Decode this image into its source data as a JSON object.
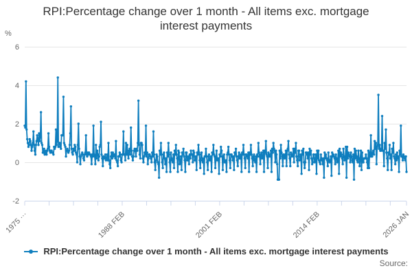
{
  "title": "RPI:Percentage change over 1 month - All items exc. mortgage interest payments",
  "y_axis": {
    "unit_label": "%",
    "tick_labels": [
      "6",
      "4",
      "2",
      "0",
      "-2"
    ]
  },
  "x_axis": {
    "labels": [
      {
        "text": "1975 ···",
        "month": 0
      },
      {
        "text": "1988 FEB",
        "month": 156
      },
      {
        "text": "2001 FEB",
        "month": 312
      },
      {
        "text": "2014 FEB",
        "month": 468
      },
      {
        "text": "2026 JAN",
        "month": 611
      }
    ]
  },
  "legend": {
    "label": "RPI:Percentage change over 1 month - All items exc. mortgage interest payments"
  },
  "source_label": "Source:",
  "colors": {
    "line": "#0f7ebe",
    "grid": "#e6e6e6",
    "axis": "#ccd6eb",
    "axis_text": "#666666",
    "title_text": "#333333"
  },
  "chart_data": {
    "type": "line",
    "title": "RPI:Percentage change over 1 month - All items exc. mortgage interest payments",
    "series_name": "RPI:Percentage change over 1 month - All items exc. mortgage interest payments",
    "ylabel": "%",
    "ylim": [
      -2,
      6
    ],
    "y_ticks": [
      6,
      4,
      2,
      0,
      -2
    ],
    "x_start": "1975 FEB",
    "x_end": "2026 JAN",
    "frequency": "monthly",
    "x_minor_tick_every_months": 39,
    "grid": true,
    "legend_position": "bottom",
    "values": [
      1.9,
      1.8,
      4.2,
      1.7,
      1.2,
      1.0,
      0.8,
      0.9,
      1.2,
      1.1,
      0.9,
      0.6,
      0.8,
      1.0,
      1.6,
      0.9,
      0.6,
      0.4,
      0.9,
      1.1,
      1.4,
      1.2,
      0.9,
      1.5,
      1.1,
      1.3,
      2.6,
      1.0,
      0.9,
      0.5,
      0.5,
      0.7,
      0.4,
      0.5,
      0.6,
      0.4,
      0.6,
      0.7,
      1.5,
      0.8,
      0.6,
      0.5,
      0.6,
      0.6,
      0.5,
      0.5,
      0.4,
      0.8,
      0.7,
      0.8,
      1.7,
      0.9,
      1.1,
      4.4,
      0.8,
      1.0,
      1.0,
      0.8,
      0.7,
      1.4,
      1.4,
      1.4,
      3.4,
      1.0,
      0.9,
      0.8,
      0.3,
      0.6,
      0.7,
      0.6,
      0.5,
      0.6,
      0.9,
      1.5,
      2.9,
      0.7,
      0.5,
      0.4,
      0.7,
      0.6,
      0.9,
      0.8,
      0.5,
      0.4,
      0.0,
      0.9,
      2.0,
      0.7,
      0.3,
      -0.1,
      0.3,
      0.4,
      0.5,
      0.4,
      0.2,
      0.1,
      0.4,
      0.5,
      1.4,
      0.4,
      0.3,
      0.5,
      0.4,
      0.5,
      0.4,
      0.4,
      0.3,
      -0.1,
      0.4,
      0.3,
      1.9,
      0.4,
      0.3,
      -0.1,
      0.9,
      0.2,
      0.6,
      0.4,
      0.1,
      0.3,
      0.8,
      0.9,
      2.1,
      0.4,
      0.2,
      -0.2,
      0.3,
      0.2,
      0.2,
      0.4,
      0.1,
      0.2,
      0.4,
      0.1,
      1.0,
      0.1,
      -0.1,
      -0.3,
      0.3,
      0.5,
      0.2,
      0.5,
      0.3,
      0.4,
      0.4,
      0.2,
      1.1,
      0.1,
      0.0,
      -0.2,
      0.3,
      0.3,
      0.5,
      0.4,
      0.1,
      0.0,
      0.4,
      0.4,
      1.6,
      0.4,
      0.4,
      0.1,
      1.0,
      0.4,
      0.9,
      0.4,
      0.2,
      0.6,
      0.7,
      0.4,
      1.8,
      0.6,
      0.3,
      0.1,
      0.3,
      0.6,
      0.7,
      0.6,
      0.3,
      0.7,
      0.6,
      1.0,
      3.2,
      0.9,
      0.4,
      0.2,
      1.0,
      1.0,
      0.9,
      0.2,
      0.0,
      0.3,
      0.5,
      0.4,
      1.9,
      0.3,
      0.5,
      -0.1,
      0.2,
      0.4,
      0.4,
      0.3,
      0.2,
      0.0,
      0.5,
      0.3,
      1.6,
      0.4,
      0.0,
      -0.4,
      0.1,
      0.4,
      0.3,
      0.0,
      -0.1,
      -0.8,
      0.6,
      0.4,
      1.0,
      0.4,
      0.0,
      -0.3,
      0.4,
      0.5,
      0.2,
      -0.1,
      0.2,
      -0.5,
      0.5,
      0.3,
      1.0,
      0.4,
      0.0,
      -0.5,
      0.5,
      0.2,
      0.1,
      0.0,
      0.4,
      -0.3,
      0.6,
      0.4,
      0.9,
      0.4,
      0.2,
      -0.5,
      0.6,
      0.5,
      -0.1,
      0.0,
      0.3,
      -0.4,
      0.5,
      0.4,
      0.7,
      0.3,
      0.1,
      -0.5,
      0.5,
      0.5,
      0.1,
      0.1,
      0.3,
      -0.1,
      0.4,
      0.2,
      0.6,
      0.4,
      0.4,
      0.0,
      0.6,
      0.5,
      0.1,
      0.1,
      0.3,
      -0.4,
      0.5,
      0.4,
      0.9,
      0.5,
      0.1,
      -0.3,
      0.4,
      0.5,
      0.1,
      0.0,
      0.2,
      -0.6,
      0.3,
      0.3,
      0.7,
      0.3,
      0.0,
      -0.4,
      0.3,
      0.4,
      0.1,
      0.1,
      0.3,
      -0.5,
      0.5,
      0.4,
      0.9,
      0.4,
      0.3,
      -0.3,
      0.2,
      0.6,
      0.1,
      0.2,
      0.2,
      -0.6,
      0.4,
      0.3,
      0.8,
      0.6,
      0.3,
      -0.4,
      0.3,
      0.4,
      0.0,
      0.0,
      0.1,
      -0.5,
      0.4,
      0.5,
      0.8,
      0.4,
      0.1,
      -0.3,
      0.4,
      0.4,
      0.3,
      0.1,
      0.3,
      -0.4,
      0.5,
      0.4,
      0.7,
      0.3,
      0.1,
      -0.2,
      0.3,
      0.5,
      0.2,
      0.2,
      0.4,
      -0.5,
      0.5,
      0.4,
      0.9,
      0.4,
      0.2,
      -0.3,
      0.4,
      0.4,
      0.3,
      0.2,
      0.5,
      -0.5,
      0.5,
      0.4,
      0.9,
      0.4,
      0.2,
      -0.2,
      0.3,
      0.4,
      0.1,
      0.0,
      0.3,
      -0.5,
      0.4,
      0.3,
      1.0,
      0.5,
      0.3,
      -0.1,
      0.4,
      0.5,
      0.2,
      0.3,
      0.6,
      -0.5,
      0.6,
      0.5,
      1.1,
      0.4,
      0.3,
      -0.3,
      0.5,
      0.3,
      0.4,
      0.3,
      0.6,
      -0.5,
      0.7,
      0.5,
      1.0,
      0.7,
      0.6,
      0.0,
      0.6,
      0.4,
      -0.1,
      -0.9,
      -0.9,
      -0.9,
      0.6,
      0.2,
      0.9,
      0.5,
      0.3,
      -0.2,
      0.4,
      0.4,
      0.2,
      0.3,
      0.6,
      -0.2,
      0.6,
      0.7,
      1.1,
      0.4,
      0.2,
      -0.2,
      0.5,
      0.4,
      0.3,
      0.4,
      0.7,
      0.0,
      0.7,
      0.5,
      1.0,
      0.3,
      0.1,
      -0.2,
      0.6,
      0.6,
      0.1,
      0.2,
      0.4,
      -0.6,
      0.6,
      0.4,
      0.7,
      0.0,
      -0.3,
      0.0,
      0.5,
      0.5,
      0.4,
      0.2,
      0.5,
      -0.4,
      0.7,
      0.4,
      0.6,
      0.2,
      -0.1,
      0.0,
      0.4,
      0.4,
      0.0,
      0.1,
      0.4,
      -0.6,
      0.6,
      0.2,
      0.6,
      0.1,
      0.0,
      -0.1,
      0.4,
      0.2,
      0.1,
      -0.1,
      0.2,
      -0.8,
      0.5,
      0.2,
      0.4,
      0.2,
      0.1,
      -0.2,
      0.5,
      0.1,
      0.0,
      0.1,
      0.3,
      -0.7,
      0.5,
      0.3,
      0.4,
      0.3,
      0.2,
      -0.1,
      0.4,
      0.2,
      0.0,
      0.1,
      0.6,
      -0.6,
      0.7,
      0.3,
      0.5,
      0.4,
      0.2,
      -0.1,
      0.7,
      0.3,
      0.1,
      0.2,
      0.8,
      -0.8,
      0.8,
      0.2,
      0.5,
      0.4,
      0.3,
      0.0,
      0.5,
      0.3,
      0.1,
      0.0,
      0.4,
      -0.9,
      0.7,
      0.2,
      0.6,
      0.3,
      0.1,
      0.0,
      0.6,
      0.2,
      -0.2,
      0.2,
      0.6,
      -0.4,
      0.5,
      0.0,
      0.0,
      0.2,
      0.2,
      0.2,
      0.4,
      0.2,
      0.0,
      -0.3,
      0.6,
      -0.3,
      0.5,
      0.3,
      1.4,
      0.3,
      0.3,
      0.5,
      0.6,
      0.4,
      1.1,
      0.7,
      1.0,
      -0.1,
      0.8,
      0.9,
      3.5,
      0.7,
      0.9,
      0.6,
      0.6,
      0.7,
      2.4,
      0.6,
      0.6,
      -0.2,
      1.0,
      0.7,
      1.7,
      0.5,
      0.2,
      -0.4,
      0.5,
      0.4,
      0.9,
      0.2,
      0.4,
      -0.4,
      0.7,
      0.5,
      1.0,
      0.3,
      0.2,
      -0.1,
      0.4,
      0.1,
      0.5,
      0.2,
      0.3,
      -0.5,
      0.6,
      0.4,
      1.9,
      0.3,
      0.3,
      0.1,
      0.4,
      0.3,
      0.2,
      0.1,
      0.3,
      -0.5
    ]
  }
}
